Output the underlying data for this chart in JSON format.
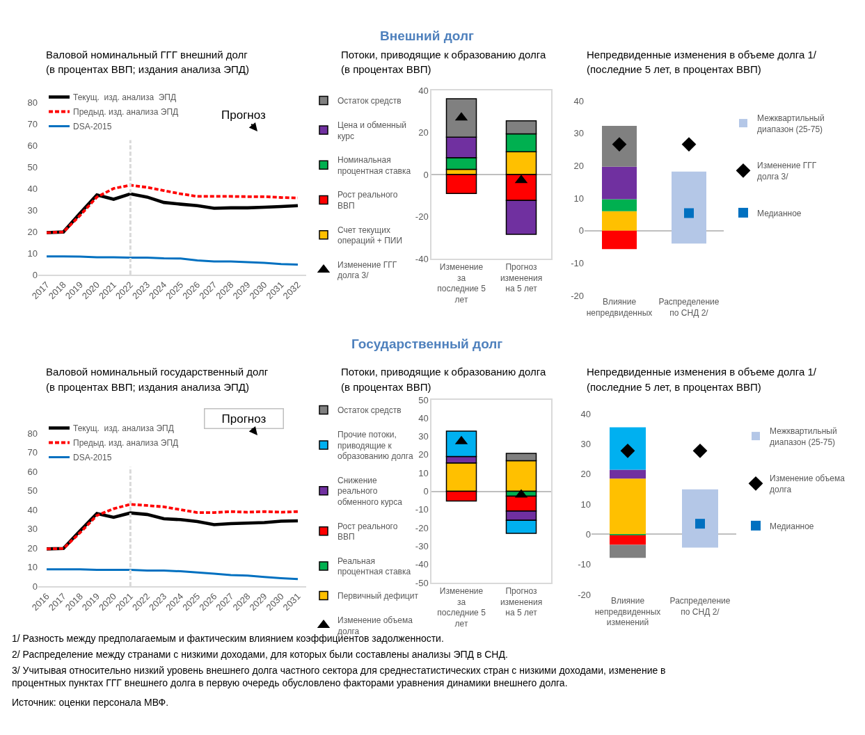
{
  "chart_data": [
    {
      "type": "line",
      "title": "Валовой номинальный ГГГ внешний долг",
      "subtitle": "(в процентах ВВП; издания анализа ЭПД)",
      "x": [
        2017,
        2018,
        2019,
        2020,
        2021,
        2022,
        2023,
        2024,
        2025,
        2026,
        2027,
        2028,
        2029,
        2030,
        2031,
        2032
      ],
      "xlim": [
        2016.5,
        2032.5
      ],
      "xticks": [
        2017,
        2018,
        2019,
        2020,
        2021,
        2022,
        2023,
        2024,
        2025,
        2026,
        2027,
        2028,
        2029,
        2030,
        2031,
        2032
      ],
      "ylim": [
        0,
        80
      ],
      "yticks": [
        0,
        10,
        20,
        30,
        40,
        50,
        60,
        70,
        80
      ],
      "legend": "top left",
      "marker": "none",
      "series": [
        {
          "name": "Текущ.  изд. анализа  ЭПД",
          "color": "#000000",
          "line_style": "solid",
          "values": [
            19.5,
            19.8,
            28.5,
            37,
            35,
            37.5,
            36,
            33.5,
            32.7,
            32,
            30.8,
            31,
            31,
            31.3,
            31.6,
            32
          ]
        },
        {
          "name": "Предыд. изд. анализа ЭПД",
          "color": "#ff0000",
          "line_style": "dashed",
          "values": [
            19.5,
            19.8,
            27.5,
            36,
            40,
            41.5,
            40.5,
            39,
            37.5,
            36.3,
            36.3,
            36.3,
            36.2,
            36.2,
            35.8,
            35.6
          ]
        },
        {
          "name": "DSA-2015",
          "color": "#0070c0",
          "line_style": "solid",
          "values": [
            8.5,
            8.5,
            8.4,
            8.1,
            8.1,
            7.9,
            7.9,
            7.6,
            7.5,
            6.6,
            6.1,
            6.1,
            5.8,
            5.5,
            4.9,
            4.7
          ]
        }
      ],
      "ref_lines": [
        {
          "axis": "x",
          "value": 2022,
          "color": "#d9d9d9",
          "line_style": "dashed"
        }
      ],
      "annotations": [
        "Внешний долг",
        "Прогноз"
      ]
    },
    {
      "type": "bar",
      "stacked": true,
      "title": "Потоки, приводящие к образованию долга",
      "subtitle": "(в процентах ВВП)",
      "categories": [
        "Изменение за последние 5 лет",
        "Прогноз изменения на 5 лет"
      ],
      "ylim": [
        -40,
        40
      ],
      "yticks": [
        -40,
        -20,
        0,
        20,
        40
      ],
      "legend": "left",
      "series": [
        {
          "name": "Счет текущих операций + ПИИ",
          "color": "#ffc000",
          "values": [
            2.5,
            10.8
          ]
        },
        {
          "name": "Рост реального ВВП",
          "color": "#ff0000",
          "values": [
            -9,
            -12.3
          ]
        },
        {
          "name": "Номинальная процентная ставка",
          "color": "#00b050",
          "values": [
            5.5,
            8.5
          ]
        },
        {
          "name": "Цена и обменный курс",
          "color": "#7030a0",
          "values": [
            9.8,
            -16.1
          ]
        },
        {
          "name": "Остаток средств",
          "color": "#808080",
          "values": [
            18.2,
            6.2
          ]
        },
        {
          "name": "Изменение ГГГ долга 3/",
          "type": "scatter",
          "marker": "triangle",
          "color": "#000000",
          "values": [
            27,
            -2.7
          ]
        }
      ]
    },
    {
      "type": "bar",
      "stacked": true,
      "title": "Непредвиденные изменения в объеме долга 1/",
      "subtitle": "(последние 5 лет, в процентах ВВП)",
      "categories": [
        "Влияние непредвиденных",
        "Распределение  по СНД 2/"
      ],
      "ylim": [
        -20,
        40
      ],
      "yticks": [
        -20,
        -10,
        0,
        10,
        20,
        30,
        40
      ],
      "legend": "right",
      "series": [
        {
          "color": "#ffc000",
          "values": [
            6.0,
            null
          ]
        },
        {
          "color": "#ff0000",
          "values": [
            -5.7,
            null
          ]
        },
        {
          "color": "#00b050",
          "values": [
            3.7,
            null
          ]
        },
        {
          "color": "#7030a0",
          "values": [
            10.0,
            null
          ]
        },
        {
          "color": "#808080",
          "values": [
            12.6,
            null
          ]
        },
        {
          "name": "Межквартильный диапазон (25-75)",
          "color": "#b4c7e7",
          "base": [
            null,
            -4.0
          ],
          "values": [
            null,
            22.2
          ]
        },
        {
          "name": "Изменение ГГГ долга 3/",
          "type": "scatter",
          "marker": "diamond",
          "color": "#000000",
          "values": [
            26.6,
            26.6
          ]
        },
        {
          "name": "Медианное",
          "type": "scatter",
          "marker": "square",
          "color": "#0070c0",
          "values": [
            null,
            5.4
          ]
        }
      ]
    },
    {
      "type": "line",
      "title": "Валовой номинальный государственный долг",
      "subtitle": "(в процентах ВВП; издания анализа ЭПД)",
      "x": [
        2016,
        2017,
        2018,
        2019,
        2020,
        2021,
        2022,
        2023,
        2024,
        2025,
        2026,
        2027,
        2028,
        2029,
        2030,
        2031
      ],
      "xlim": [
        2015.5,
        2031.5
      ],
      "xticks": [
        2016,
        2017,
        2018,
        2019,
        2020,
        2021,
        2022,
        2023,
        2024,
        2025,
        2026,
        2027,
        2028,
        2029,
        2030,
        2031
      ],
      "ylim": [
        0,
        80
      ],
      "yticks": [
        0,
        10,
        20,
        30,
        40,
        50,
        60,
        70,
        80
      ],
      "legend": "top left",
      "marker": "none",
      "series": [
        {
          "name": "Текущ.  изд. анализа ЭПД",
          "color": "#000000",
          "line_style": "solid",
          "values": [
            19.5,
            19.7,
            29,
            38,
            36,
            38.3,
            37.5,
            35.3,
            34.8,
            33.8,
            32.2,
            32.7,
            33,
            33.3,
            34,
            34.2
          ]
        },
        {
          "name": "Предыд. изд. анализа ЭПД",
          "color": "#ff0000",
          "line_style": "dashed",
          "values": [
            19.5,
            19.7,
            28,
            37,
            40.5,
            42.8,
            42.2,
            41.5,
            40,
            38.5,
            38.5,
            39,
            38.7,
            39,
            38.7,
            39
          ]
        },
        {
          "name": "DSA-2015",
          "color": "#0070c0",
          "line_style": "solid",
          "values": [
            8.8,
            8.8,
            8.8,
            8.5,
            8.5,
            8.5,
            8.2,
            8.2,
            7.8,
            7.2,
            6.5,
            5.8,
            5.5,
            4.8,
            4.2,
            3.7
          ]
        }
      ],
      "ref_lines": [
        {
          "axis": "x",
          "value": 2021,
          "color": "#d9d9d9",
          "line_style": "dashed"
        }
      ],
      "annotations": [
        "Государственный долг",
        "Прогноз"
      ]
    },
    {
      "type": "bar",
      "stacked": true,
      "title": "Потоки, приводящие к образованию долга",
      "subtitle": "(в процентах ВВП)",
      "categories": [
        "Изменение за последние 5 лет",
        "Прогноз изменения на 5 лет"
      ],
      "ylim": [
        -50,
        50
      ],
      "yticks": [
        -50,
        -40,
        -30,
        -20,
        -10,
        0,
        10,
        20,
        30,
        40,
        50
      ],
      "legend": "left",
      "series": [
        {
          "name": "Первичный дефицит",
          "color": "#ffc000",
          "values": [
            15.5,
            16.7
          ]
        },
        {
          "name": "Реальная процентная ставка",
          "color": "#00b050",
          "values": [
            null,
            -2.7
          ]
        },
        {
          "name": "Рост реального ВВП",
          "color": "#ff0000",
          "values": [
            -5.3,
            -8.1
          ]
        },
        {
          "name": "Снижение реального обменного курса",
          "color": "#7030a0",
          "values": [
            3.5,
            -5.1
          ]
        },
        {
          "name": "Прочие потоки, приводящие к образованию долга",
          "color": "#00b0f0",
          "values": [
            13.9,
            -7.1
          ]
        },
        {
          "name": "Остаток средств",
          "color": "#808080",
          "values": [
            null,
            4.0
          ]
        },
        {
          "name": "Изменение объема долга",
          "type": "scatter",
          "marker": "triangle",
          "color": "#000000",
          "values": [
            27.3,
            -1.9
          ]
        }
      ]
    },
    {
      "type": "bar",
      "stacked": true,
      "title": "Непредвиденные изменения в объеме долга 1/",
      "subtitle": "(последние 5 лет, в процентах ВВП)",
      "categories": [
        "Влияние непредвиденных изменений",
        "Распределение  по СНД 2/"
      ],
      "ylim": [
        -20,
        40
      ],
      "yticks": [
        -20,
        -10,
        0,
        10,
        20,
        30,
        40
      ],
      "legend": "right",
      "series": [
        {
          "color": "#ffc000",
          "values": [
            18.5,
            null
          ]
        },
        {
          "color": "#00b050",
          "values": [
            -0.3,
            null
          ]
        },
        {
          "color": "#ff0000",
          "values": [
            -3.2,
            null
          ]
        },
        {
          "color": "#7030a0",
          "values": [
            2.9,
            null
          ]
        },
        {
          "color": "#00b0f0",
          "values": [
            14.1,
            null
          ]
        },
        {
          "color": "#808080",
          "values": [
            -4.3,
            null
          ]
        },
        {
          "name": "Межквартильный диапазон (25-75)",
          "color": "#b4c7e7",
          "base": [
            null,
            -4.4
          ],
          "values": [
            null,
            19.3
          ]
        },
        {
          "name": "Изменение объема долга",
          "type": "scatter",
          "marker": "diamond",
          "color": "#000000",
          "values": [
            27.7,
            27.7
          ]
        },
        {
          "name": "Медианное",
          "type": "scatter",
          "marker": "square",
          "color": "#0070c0",
          "values": [
            null,
            3.5
          ]
        }
      ],
      "annotations": [
        "1/ Разность между предполагаемым и фактическим влиянием коэффициентов задолженности.",
        "2/ Распределение между странами с низкими доходами, для которых были составлены анализы ЭПД в СНД.",
        "3/ Учитывая относительно низкий уровень внешнего долга частного сектора для среднестатистических стран с низкими доходами, изменение в процентных пунктах ГГГ внешнего долга в первую очередь обусловлено факторами уравнения динамики внешнего долга.",
        "Источник: оценки персонала МВФ."
      ]
    }
  ]
}
